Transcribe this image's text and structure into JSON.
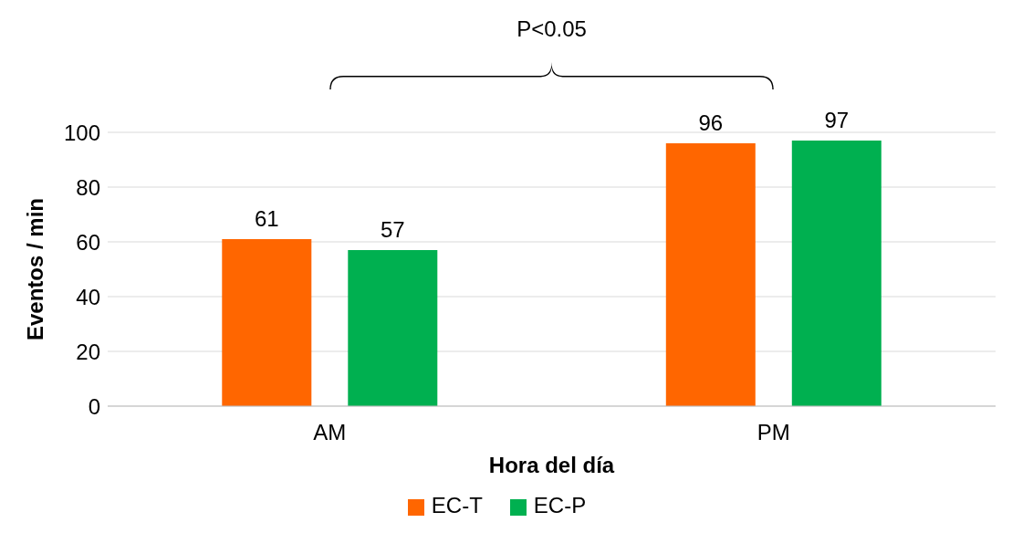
{
  "chart_data": {
    "type": "bar",
    "categories": [
      "AM",
      "PM"
    ],
    "series": [
      {
        "name": "EC-T",
        "color": "#ff6600",
        "values": [
          61,
          96
        ]
      },
      {
        "name": "EC-P",
        "color": "#00b050",
        "values": [
          57,
          97
        ]
      }
    ],
    "xlabel": "Hora del día",
    "ylabel": "Eventos / min",
    "ylim": [
      0,
      100
    ],
    "yticks": [
      0,
      20,
      40,
      60,
      80,
      100
    ],
    "grid": "y",
    "legend": "bottom",
    "data_labels": true,
    "annotations": [
      "P<0.05"
    ]
  }
}
